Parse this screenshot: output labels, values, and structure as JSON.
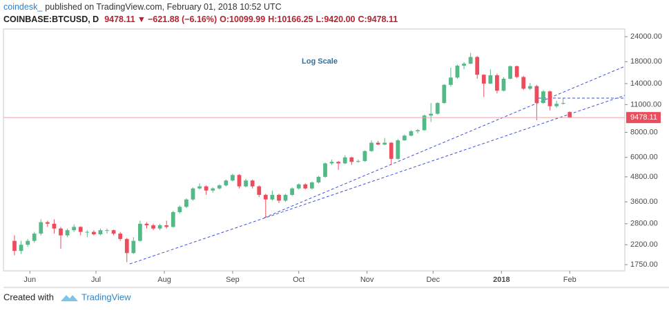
{
  "header": {
    "brand": "coindesk_",
    "published": "published on TradingView.com, February 01, 2018 10:52 UTC",
    "symbol": "COINBASE:BTCUSD, D",
    "price": "9478.11",
    "change": "−621.88 (−6.16%)",
    "o": "O:10099.99",
    "h": "H:10166.25",
    "l": "L:9420.00",
    "c": "C:9478.11"
  },
  "footer": {
    "created": "Created with",
    "brand": "TradingView"
  },
  "chart_data": {
    "type": "candlestick",
    "annotation": "Log Scale",
    "y_scale": "log",
    "grid": false,
    "up_color": "#53b987",
    "down_color": "#eb4d5c",
    "ylim": [
      1630,
      26200
    ],
    "yticks": [
      {
        "value": 24000,
        "label": "24000.00"
      },
      {
        "value": 18000,
        "label": "18000.00"
      },
      {
        "value": 14000,
        "label": "14000.00"
      },
      {
        "value": 11000,
        "label": "11000.00"
      },
      {
        "value": 8000,
        "label": "8000.00"
      },
      {
        "value": 6000,
        "label": "6000.00"
      },
      {
        "value": 4800,
        "label": "4800.00"
      },
      {
        "value": 3600,
        "label": "3600.00"
      },
      {
        "value": 2800,
        "label": "2800.00"
      },
      {
        "value": 2200,
        "label": "2200.00"
      },
      {
        "value": 1750,
        "label": "1750.00"
      }
    ],
    "xlim": [
      -1.67,
      92.33
    ],
    "xticks": [
      {
        "value": 2.33,
        "label": "Jun"
      },
      {
        "value": 12.33,
        "label": "Jul"
      },
      {
        "value": 22.67,
        "label": "Aug"
      },
      {
        "value": 33,
        "label": "Sep"
      },
      {
        "value": 43,
        "label": "Oct"
      },
      {
        "value": 53.33,
        "label": "Nov"
      },
      {
        "value": 63.33,
        "label": "Dec"
      },
      {
        "value": 73.67,
        "label": "2018"
      },
      {
        "value": 84,
        "label": "Feb"
      }
    ],
    "candles": [
      [
        2300,
        2450,
        1950,
        2050
      ],
      [
        2050,
        2300,
        1980,
        2200
      ],
      [
        2200,
        2350,
        2150,
        2300
      ],
      [
        2300,
        2550,
        2250,
        2500
      ],
      [
        2500,
        2950,
        2450,
        2850
      ],
      [
        2850,
        2900,
        2700,
        2800
      ],
      [
        2800,
        2950,
        2500,
        2650
      ],
      [
        2650,
        2700,
        2100,
        2450
      ],
      [
        2450,
        2650,
        2400,
        2600
      ],
      [
        2600,
        2780,
        2550,
        2700
      ],
      [
        2700,
        2720,
        2450,
        2550
      ],
      [
        2550,
        2600,
        2400,
        2550
      ],
      [
        2550,
        2600,
        2450,
        2480
      ],
      [
        2480,
        2650,
        2450,
        2600
      ],
      [
        2600,
        2650,
        2500,
        2600
      ],
      [
        2600,
        2620,
        2450,
        2500
      ],
      [
        2500,
        2550,
        2300,
        2350
      ],
      [
        2350,
        2380,
        1800,
        2000
      ],
      [
        2000,
        2400,
        1980,
        2300
      ],
      [
        2300,
        2900,
        2280,
        2800
      ],
      [
        2800,
        2850,
        2650,
        2750
      ],
      [
        2750,
        2800,
        2600,
        2650
      ],
      [
        2650,
        2800,
        2600,
        2750
      ],
      [
        2750,
        2900,
        2650,
        2700
      ],
      [
        2700,
        3250,
        2680,
        3200
      ],
      [
        3200,
        3450,
        3150,
        3400
      ],
      [
        3400,
        3750,
        3350,
        3700
      ],
      [
        3700,
        4250,
        3650,
        4200
      ],
      [
        4200,
        4450,
        4150,
        4300
      ],
      [
        4300,
        4350,
        3900,
        4100
      ],
      [
        4100,
        4250,
        4000,
        4200
      ],
      [
        4200,
        4400,
        4150,
        4350
      ],
      [
        4350,
        4650,
        4300,
        4600
      ],
      [
        4600,
        4980,
        4550,
        4900
      ],
      [
        4900,
        4950,
        4200,
        4300
      ],
      [
        4300,
        4700,
        4250,
        4600
      ],
      [
        4600,
        4650,
        4200,
        4300
      ],
      [
        4300,
        4350,
        3800,
        3900
      ],
      [
        3900,
        3950,
        3000,
        3700
      ],
      [
        3700,
        4100,
        3650,
        3900
      ],
      [
        3900,
        3950,
        3550,
        3650
      ],
      [
        3650,
        3950,
        3600,
        3900
      ],
      [
        3900,
        4250,
        3850,
        4200
      ],
      [
        4200,
        4450,
        4150,
        4400
      ],
      [
        4400,
        4450,
        4150,
        4200
      ],
      [
        4200,
        4550,
        4150,
        4500
      ],
      [
        4500,
        4850,
        4450,
        4800
      ],
      [
        4800,
        5650,
        4750,
        5600
      ],
      [
        5600,
        5850,
        5500,
        5700
      ],
      [
        5700,
        5750,
        5200,
        5600
      ],
      [
        5600,
        6150,
        5550,
        6000
      ],
      [
        6000,
        6050,
        5500,
        5700
      ],
      [
        5700,
        5850,
        5650,
        5750
      ],
      [
        5750,
        6500,
        5700,
        6450
      ],
      [
        6450,
        7300,
        6400,
        7100
      ],
      [
        7100,
        7250,
        6900,
        6950
      ],
      [
        6950,
        7500,
        6900,
        7100
      ],
      [
        7100,
        7150,
        5500,
        5900
      ],
      [
        5900,
        7400,
        5850,
        7300
      ],
      [
        7300,
        7800,
        7250,
        7700
      ],
      [
        7700,
        8200,
        7650,
        8100
      ],
      [
        8100,
        8300,
        7900,
        8200
      ],
      [
        8200,
        9800,
        8150,
        9700
      ],
      [
        9700,
        11200,
        9000,
        9900
      ],
      [
        9900,
        11300,
        9800,
        11200
      ],
      [
        11200,
        13900,
        11100,
        13800
      ],
      [
        13800,
        16800,
        13500,
        15000
      ],
      [
        15000,
        17400,
        14800,
        17200
      ],
      [
        17200,
        17900,
        16500,
        17600
      ],
      [
        17600,
        19900,
        17500,
        19000
      ],
      [
        19000,
        19200,
        14800,
        15500
      ],
      [
        15500,
        15600,
        12000,
        14000
      ],
      [
        14000,
        16500,
        13900,
        15400
      ],
      [
        15400,
        15700,
        12500,
        12900
      ],
      [
        12900,
        15100,
        12800,
        14800
      ],
      [
        14800,
        17200,
        14700,
        17100
      ],
      [
        17100,
        17200,
        14900,
        15100
      ],
      [
        15100,
        15300,
        13000,
        13200
      ],
      [
        13200,
        14100,
        13000,
        13600
      ],
      [
        13600,
        13800,
        9200,
        11200
      ],
      [
        11200,
        13000,
        11100,
        12800
      ],
      [
        12800,
        12900,
        10300,
        10800
      ],
      [
        10800,
        11500,
        10600,
        11100
      ],
      [
        11100,
        11800,
        11000,
        11200
      ],
      [
        10099.99,
        10166.25,
        9420,
        9478.11
      ]
    ]
  }
}
